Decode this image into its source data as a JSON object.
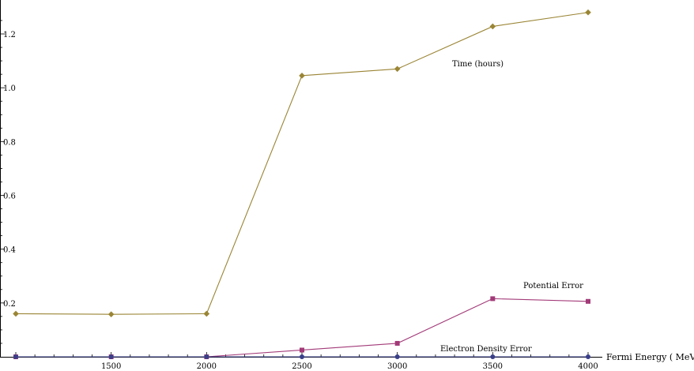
{
  "chart_data": {
    "type": "line",
    "xlabel": "Fermi Energy ( MeV)",
    "ylabel": "",
    "xlim": [
      1000,
      4000
    ],
    "ylim": [
      0,
      1.3
    ],
    "x_ticks": [
      1500,
      2000,
      2500,
      3000,
      3500,
      4000
    ],
    "x_tick_labels": [
      "1500",
      "2000",
      "2500",
      "3000",
      "3500",
      "4000"
    ],
    "y_ticks": [
      0.2,
      0.4,
      0.6,
      0.8,
      1.0,
      1.2
    ],
    "y_tick_labels": [
      "0.2",
      "0.4",
      "0.6",
      "0.8",
      "1.0",
      "1.2"
    ],
    "grid": false,
    "legend": "inline labels",
    "x": [
      1000,
      1500,
      2000,
      2500,
      3000,
      3500,
      4000
    ],
    "series": [
      {
        "name": "Time (hours)",
        "values": [
          0.16,
          0.158,
          0.16,
          1.045,
          1.07,
          1.228,
          1.28
        ],
        "color": "#9a8535",
        "marker": "diamond"
      },
      {
        "name": "Potential Error",
        "values": [
          0.0,
          0.0,
          0.0,
          0.025,
          0.05,
          0.216,
          0.206
        ],
        "color": "#a23a78",
        "marker": "square"
      },
      {
        "name": "Electron Density Error",
        "values": [
          0.0,
          0.0,
          0.0,
          0.0,
          0.0,
          0.0,
          0.0
        ],
        "color": "#3a3f8a",
        "marker": "circle"
      }
    ]
  }
}
